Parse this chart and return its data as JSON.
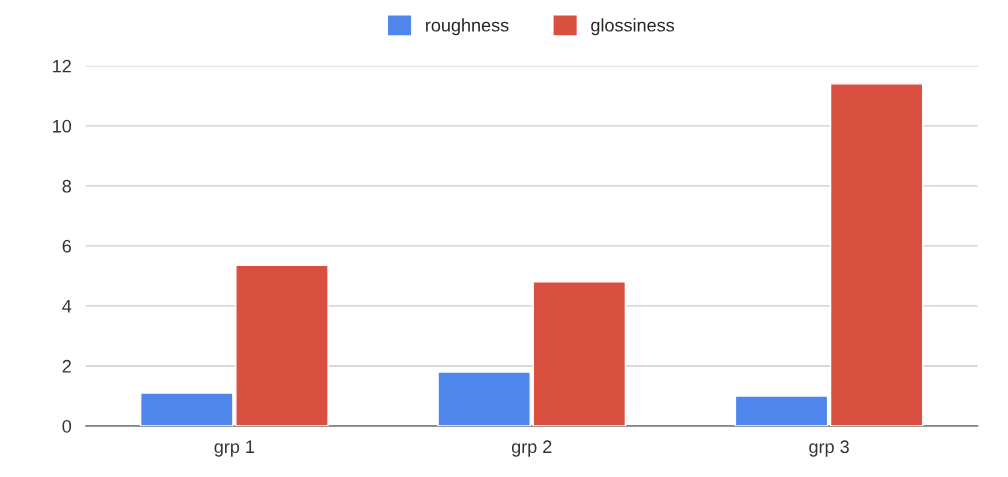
{
  "chart_data": {
    "type": "bar",
    "categories": [
      "grp 1",
      "grp 2",
      "grp 3"
    ],
    "series": [
      {
        "name": "roughness",
        "color": "#4f86ec",
        "values": [
          1.1,
          1.8,
          1.0
        ]
      },
      {
        "name": "glossiness",
        "color": "#d95040",
        "values": [
          5.35,
          4.8,
          11.4
        ]
      }
    ],
    "ylim": [
      0,
      12
    ],
    "yticks": [
      0,
      2,
      4,
      6,
      8,
      10,
      12
    ],
    "grid": "y",
    "legend": "top"
  }
}
